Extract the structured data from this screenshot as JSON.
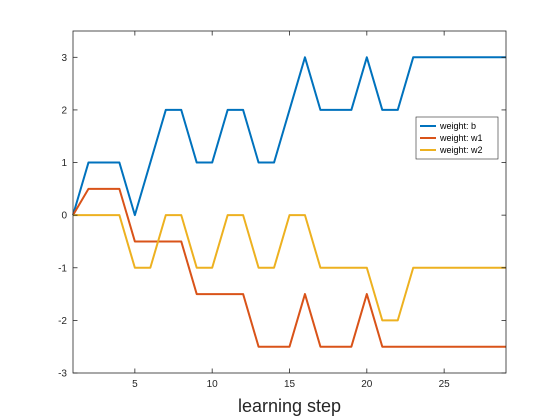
{
  "chart_data": {
    "type": "line",
    "xlabel": "learning step",
    "ylabel": "",
    "title": "",
    "xlim": [
      1,
      29
    ],
    "ylim": [
      -3,
      3.5
    ],
    "xticks": [
      5,
      10,
      15,
      20,
      25
    ],
    "yticks": [
      -3,
      -2,
      -1,
      0,
      1,
      2,
      3
    ],
    "grid": false,
    "legend_position": "right",
    "x": [
      1,
      2,
      3,
      4,
      5,
      6,
      7,
      8,
      9,
      10,
      11,
      12,
      13,
      14,
      15,
      16,
      17,
      18,
      19,
      20,
      21,
      22,
      23,
      24,
      25,
      26,
      27,
      28,
      29
    ],
    "series": [
      {
        "name": "weight: b",
        "color": "#0072BD",
        "values": [
          0,
          1,
          1,
          1,
          0,
          1,
          2,
          2,
          1,
          1,
          2,
          2,
          1,
          1,
          2,
          3,
          2,
          2,
          2,
          3,
          2,
          2,
          3,
          3,
          3,
          3,
          3,
          3,
          3
        ]
      },
      {
        "name": "weight: w1",
        "color": "#D95319",
        "values": [
          0,
          0.5,
          0.5,
          0.5,
          -0.5,
          -0.5,
          -0.5,
          -0.5,
          -1.5,
          -1.5,
          -1.5,
          -1.5,
          -2.5,
          -2.5,
          -2.5,
          -1.5,
          -2.5,
          -2.5,
          -2.5,
          -1.5,
          -2.5,
          -2.5,
          -2.5,
          -2.5,
          -2.5,
          -2.5,
          -2.5,
          -2.5,
          -2.5
        ]
      },
      {
        "name": "weight: w2",
        "color": "#EDB120",
        "values": [
          0,
          0,
          0,
          0,
          -1,
          -1,
          0,
          0,
          -1,
          -1,
          0,
          0,
          -1,
          -1,
          0,
          0,
          -1,
          -1,
          -1,
          -1,
          -2,
          -2,
          -1,
          -1,
          -1,
          -1,
          -1,
          -1,
          -1
        ]
      }
    ]
  }
}
